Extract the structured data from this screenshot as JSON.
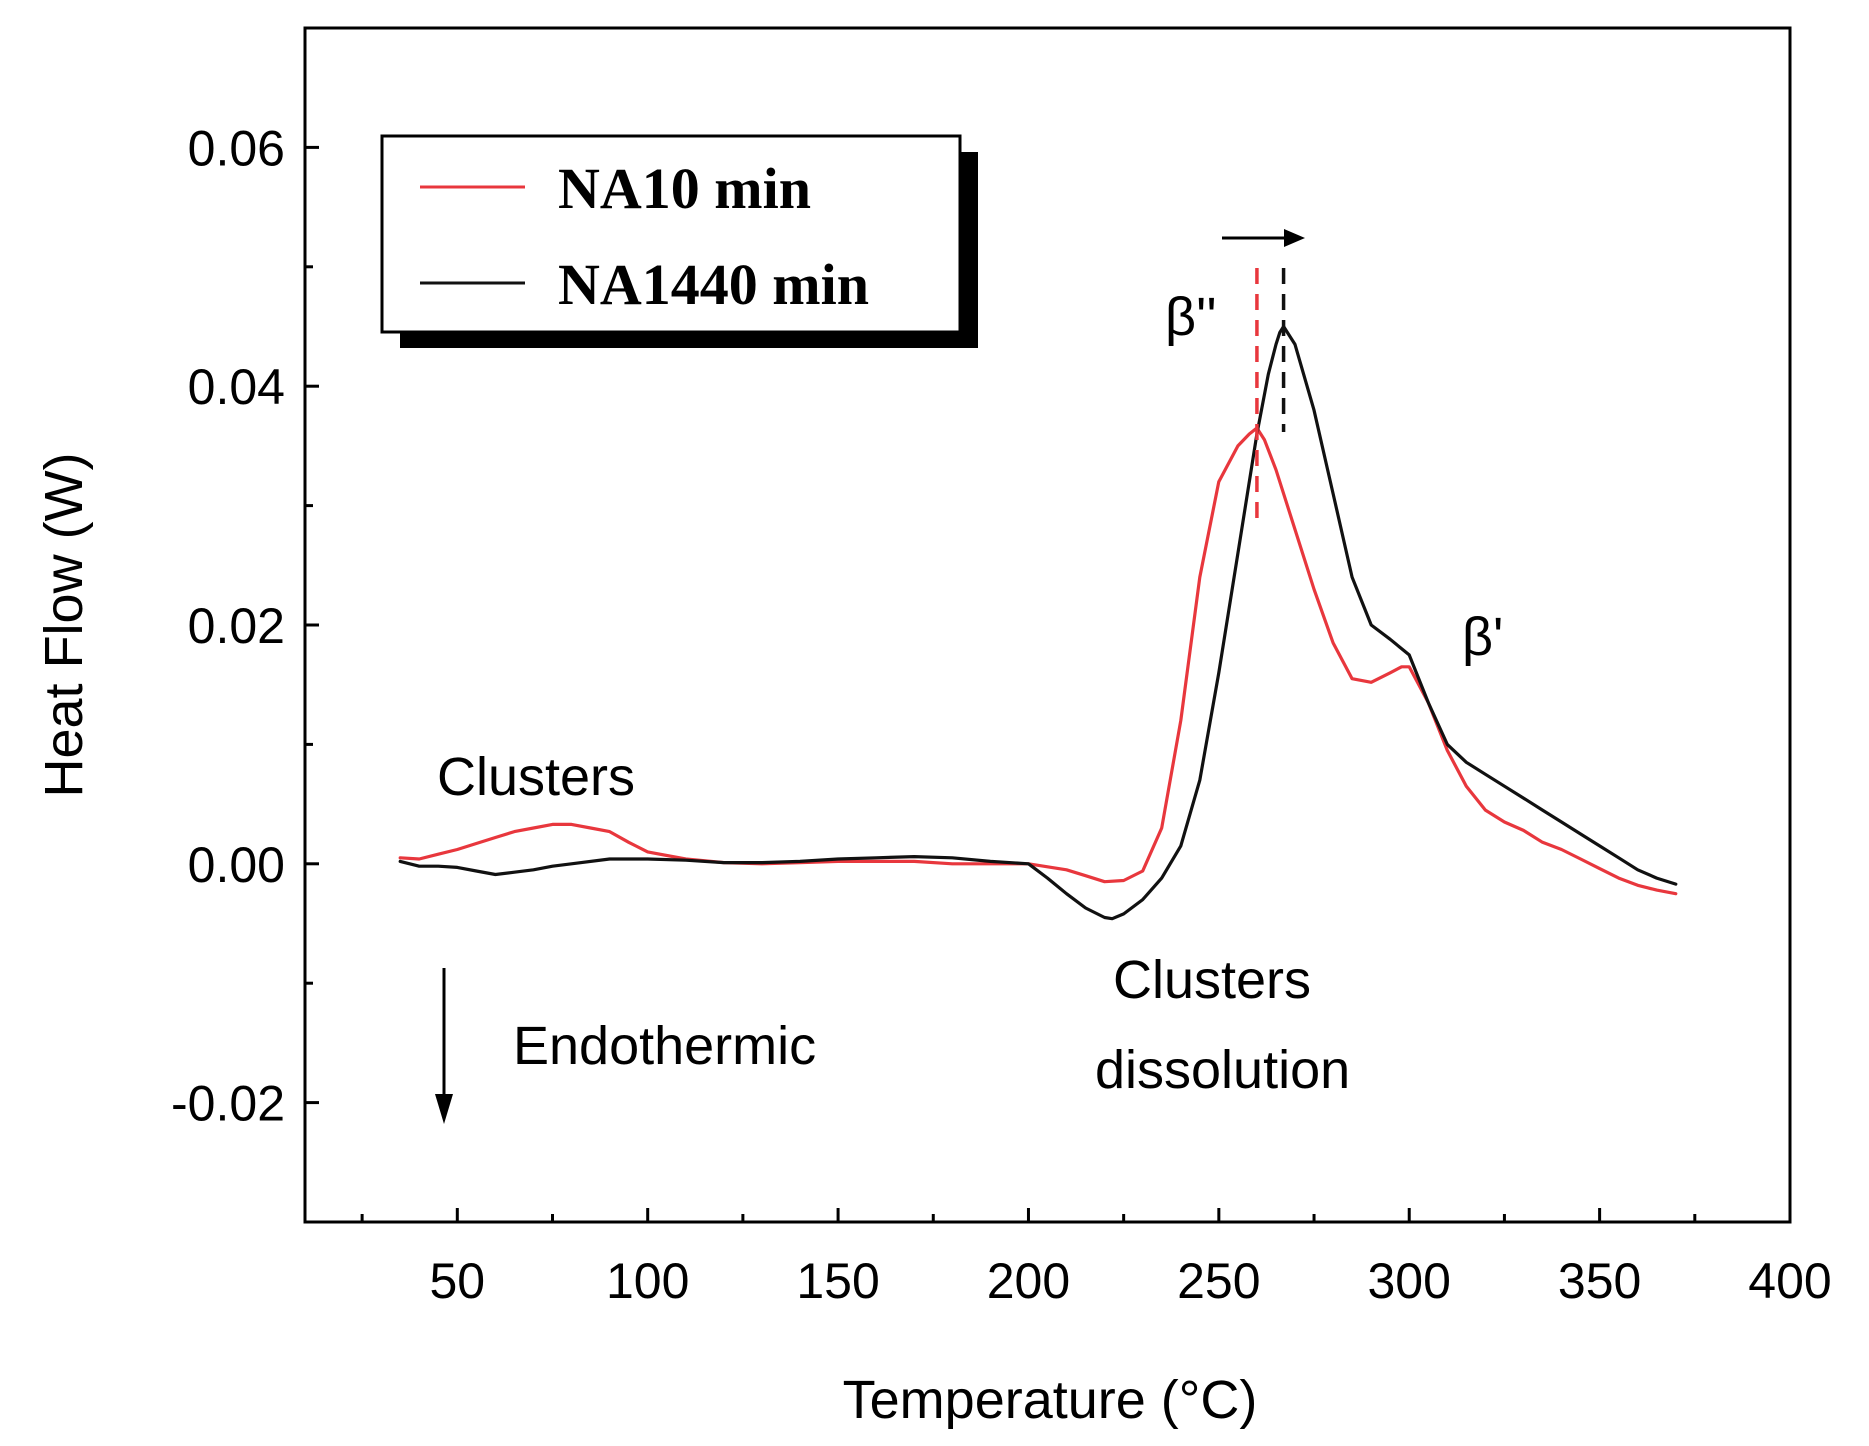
{
  "chart_data": {
    "type": "line",
    "xlabel": "Temperature (°C)",
    "ylabel": "Heat Flow (W)",
    "xlim": [
      10,
      400
    ],
    "ylim": [
      -0.03,
      0.07
    ],
    "xticks": [
      {
        "value": 50,
        "label": "50"
      },
      {
        "value": 100,
        "label": "100"
      },
      {
        "value": 150,
        "label": "150"
      },
      {
        "value": 200,
        "label": "200"
      },
      {
        "value": 250,
        "label": "250"
      },
      {
        "value": 300,
        "label": "300"
      },
      {
        "value": 350,
        "label": "350"
      },
      {
        "value": 400,
        "label": "400"
      }
    ],
    "yticks": [
      {
        "value": -0.02,
        "label": "-0.02"
      },
      {
        "value": 0.0,
        "label": "0.00"
      },
      {
        "value": 0.02,
        "label": "0.02"
      },
      {
        "value": 0.04,
        "label": "0.04"
      },
      {
        "value": 0.06,
        "label": "0.06"
      }
    ],
    "series": [
      {
        "name": "NA10 min",
        "color": "#e8373d",
        "x": [
          35,
          40,
          45,
          50,
          55,
          60,
          65,
          70,
          75,
          80,
          85,
          90,
          95,
          100,
          110,
          120,
          130,
          140,
          150,
          160,
          170,
          180,
          190,
          200,
          210,
          215,
          220,
          225,
          230,
          235,
          240,
          245,
          250,
          255,
          258,
          260,
          262,
          265,
          270,
          275,
          280,
          285,
          290,
          295,
          298,
          300,
          305,
          310,
          315,
          320,
          325,
          330,
          335,
          340,
          345,
          350,
          355,
          360,
          365,
          370
        ],
        "y": [
          0.0005,
          0.0004,
          0.0008,
          0.0012,
          0.0017,
          0.0022,
          0.0027,
          0.003,
          0.0033,
          0.0033,
          0.003,
          0.0027,
          0.0018,
          0.001,
          0.0004,
          0.0001,
          0.0,
          0.0001,
          0.0002,
          0.0002,
          0.0002,
          0.0,
          0.0,
          0.0,
          -0.0005,
          -0.001,
          -0.0015,
          -0.0014,
          -0.0006,
          0.003,
          0.012,
          0.024,
          0.032,
          0.035,
          0.036,
          0.0365,
          0.0355,
          0.033,
          0.028,
          0.023,
          0.0185,
          0.0155,
          0.0152,
          0.016,
          0.0165,
          0.0165,
          0.0135,
          0.0095,
          0.0065,
          0.0045,
          0.0035,
          0.0028,
          0.0018,
          0.0012,
          0.0004,
          -0.0004,
          -0.0012,
          -0.0018,
          -0.0022,
          -0.0025
        ]
      },
      {
        "name": "NA1440 min",
        "color": "#111111",
        "x": [
          35,
          40,
          45,
          50,
          55,
          60,
          65,
          70,
          75,
          80,
          90,
          100,
          110,
          120,
          130,
          140,
          150,
          160,
          170,
          180,
          190,
          200,
          205,
          210,
          215,
          220,
          222,
          225,
          230,
          235,
          240,
          245,
          250,
          255,
          260,
          263,
          265,
          266,
          267,
          270,
          275,
          280,
          285,
          290,
          295,
          300,
          305,
          310,
          315,
          320,
          325,
          330,
          335,
          340,
          345,
          350,
          355,
          360,
          365,
          370
        ],
        "y": [
          0.0002,
          -0.0002,
          -0.0002,
          -0.0003,
          -0.0006,
          -0.0009,
          -0.0007,
          -0.0005,
          -0.0002,
          0.0,
          0.0004,
          0.0004,
          0.0003,
          0.0001,
          0.0001,
          0.0002,
          0.0004,
          0.0005,
          0.0006,
          0.0005,
          0.0002,
          0.0,
          -0.0012,
          -0.0025,
          -0.0037,
          -0.0045,
          -0.0046,
          -0.0042,
          -0.003,
          -0.0012,
          0.0015,
          0.007,
          0.016,
          0.026,
          0.036,
          0.041,
          0.0435,
          0.0445,
          0.045,
          0.0435,
          0.038,
          0.031,
          0.024,
          0.02,
          0.0188,
          0.0175,
          0.0135,
          0.01,
          0.0085,
          0.0075,
          0.0065,
          0.0055,
          0.0045,
          0.0035,
          0.0025,
          0.0015,
          0.0005,
          -0.0005,
          -0.0012,
          -0.0017
        ]
      }
    ],
    "legend": {
      "position": "top-left",
      "entries": [
        "NA10 min",
        "NA1440 min"
      ]
    },
    "annotations": {
      "beta_double_prime": "β''",
      "beta_prime": "β'",
      "clusters_formation": "Clusters ",
      "clusters_dissolution_line1": "Clusters ",
      "clusters_dissolution_line2": "dissolution",
      "endothermic": "Endothermic"
    },
    "peak_markers": [
      {
        "series": "NA10 min",
        "x": 260,
        "color": "#e8373d"
      },
      {
        "series": "NA1440 min",
        "x": 267,
        "color": "#111111"
      }
    ]
  }
}
